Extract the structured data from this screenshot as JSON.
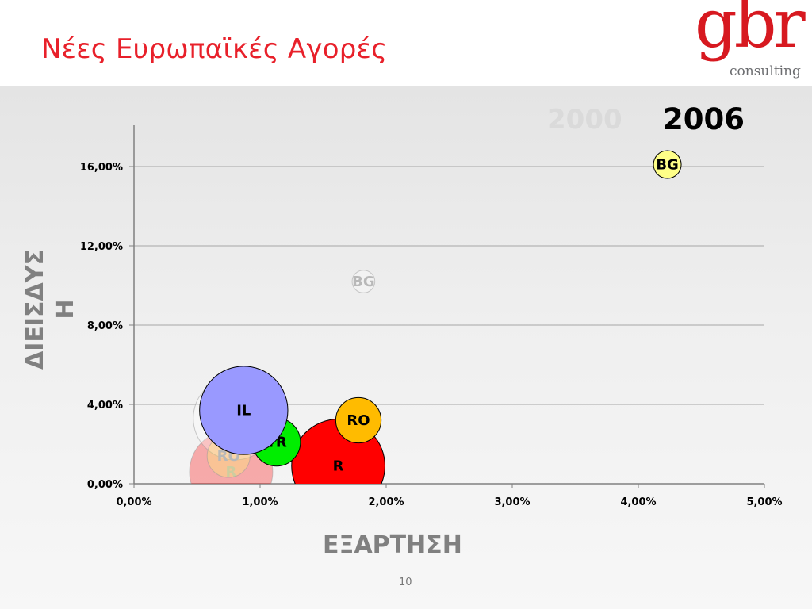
{
  "slide": {
    "title": "Νέες Ευρωπαϊκές Αγορές",
    "page_number": "10"
  },
  "logo": {
    "mark": "gbr",
    "subtitle": "consulting",
    "color": "#d71920"
  },
  "chart_data": {
    "type": "scatter",
    "bubble": true,
    "xlabel": "ΕΞΑΡΤΗΣΗ",
    "ylabel": "ΔΙΕΙΣΔΥΣ\nΗ",
    "x_ticks": [
      "0,00%",
      "1,00%",
      "2,00%",
      "3,00%",
      "4,00%",
      "5,00%"
    ],
    "y_ticks": [
      "0,00%",
      "4,00%",
      "8,00%",
      "12,00%",
      "16,00%"
    ],
    "xlim": [
      0,
      5
    ],
    "ylim": [
      0,
      16
    ],
    "grid": "horizontal",
    "years": {
      "previous": "2000",
      "current": "2006"
    },
    "series": [
      {
        "name": "2000",
        "faded": true,
        "points": [
          {
            "label": "R",
            "x": 0.77,
            "y": 0.6,
            "size": 0.33,
            "color": "#ff0000"
          },
          {
            "label": "IL",
            "x": 0.8,
            "y": 3.3,
            "size": 0.33,
            "color": "#ffffff"
          },
          {
            "label": "RO",
            "x": 0.75,
            "y": 1.4,
            "size": 0.17,
            "color": "#ffff66"
          },
          {
            "label": "BG",
            "x": 1.82,
            "y": 10.2,
            "size": 0.09,
            "color": "#ffffff"
          }
        ]
      },
      {
        "name": "2006",
        "faded": false,
        "points": [
          {
            "label": "R",
            "x": 1.62,
            "y": 0.9,
            "size": 0.37,
            "color": "#ff0000"
          },
          {
            "label": "TR",
            "x": 1.13,
            "y": 2.1,
            "size": 0.19,
            "color": "#00ee00"
          },
          {
            "label": "IL",
            "x": 0.87,
            "y": 3.7,
            "size": 0.35,
            "color": "#9999ff"
          },
          {
            "label": "RO",
            "x": 1.78,
            "y": 3.2,
            "size": 0.18,
            "color": "#ffbb00"
          },
          {
            "label": "BG",
            "x": 4.23,
            "y": 16.1,
            "size": 0.11,
            "color": "#ffff88"
          }
        ]
      }
    ]
  }
}
